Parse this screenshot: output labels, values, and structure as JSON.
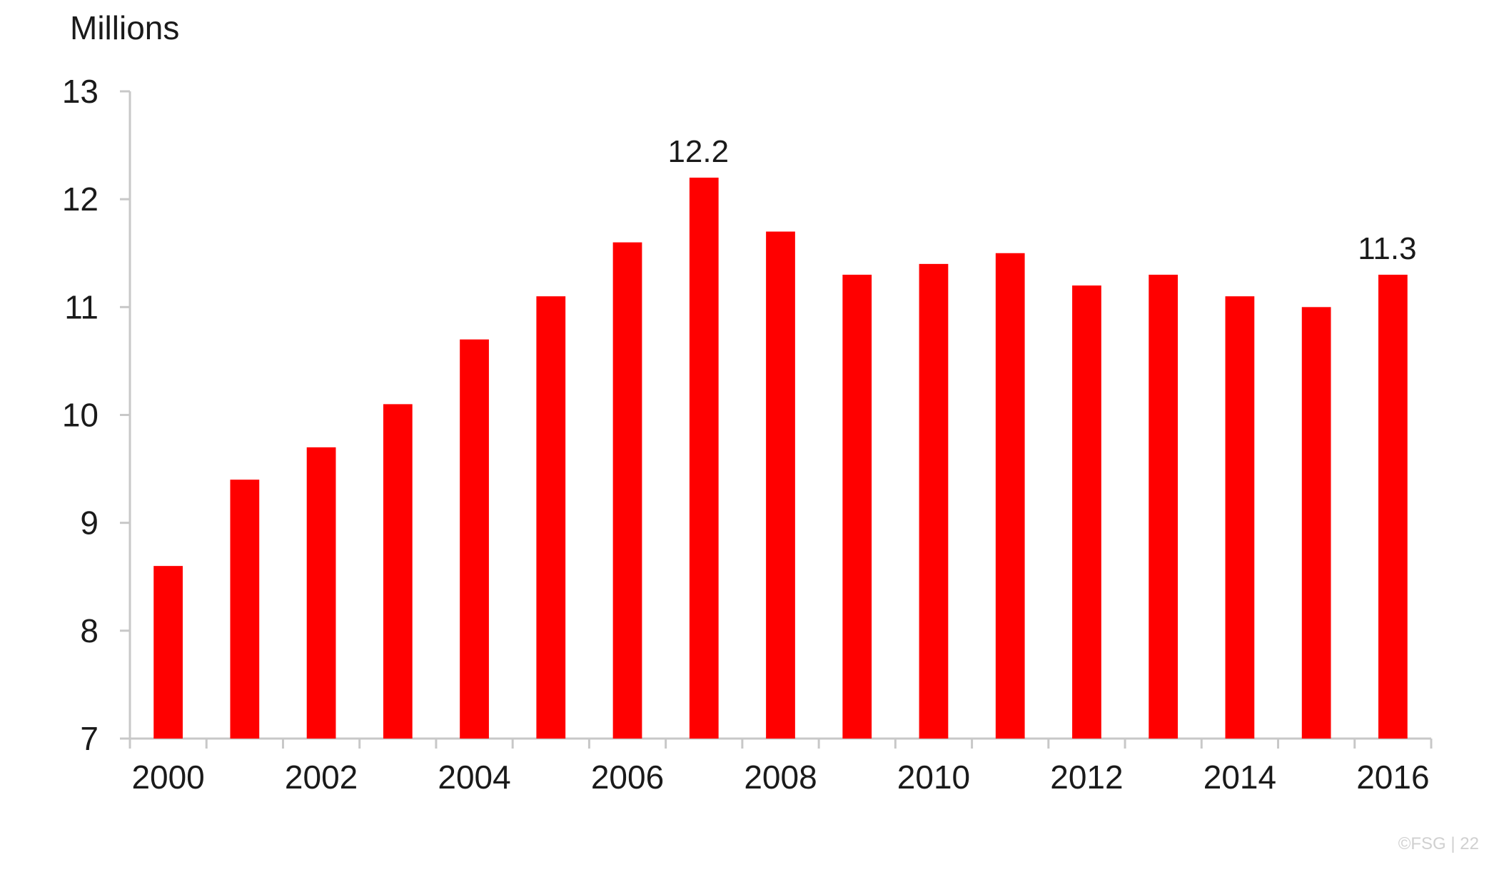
{
  "chart_data": {
    "type": "bar",
    "unit_label": "Millions",
    "categories": [
      "2000",
      "2001",
      "2002",
      "2003",
      "2004",
      "2005",
      "2006",
      "2007",
      "2008",
      "2009",
      "2010",
      "2011",
      "2012",
      "2013",
      "2014",
      "2015",
      "2016"
    ],
    "values": [
      8.6,
      9.4,
      9.7,
      10.1,
      10.7,
      11.1,
      11.6,
      12.2,
      11.7,
      11.3,
      11.4,
      11.5,
      11.2,
      11.3,
      11.1,
      11.0,
      11.3
    ],
    "x_tick_labels": [
      "2000",
      "2002",
      "2004",
      "2006",
      "2008",
      "2010",
      "2012",
      "2014",
      "2016"
    ],
    "y_ticks": [
      7,
      8,
      9,
      10,
      11,
      12,
      13
    ],
    "ylim": [
      7,
      13
    ],
    "data_labels": [
      {
        "category": "2007",
        "text": "12.2"
      },
      {
        "category": "2016",
        "text": "11.3"
      }
    ],
    "bar_color": "#ff0000",
    "grid": false,
    "legend": "none"
  },
  "footer": {
    "text": "©FSG | 22"
  }
}
